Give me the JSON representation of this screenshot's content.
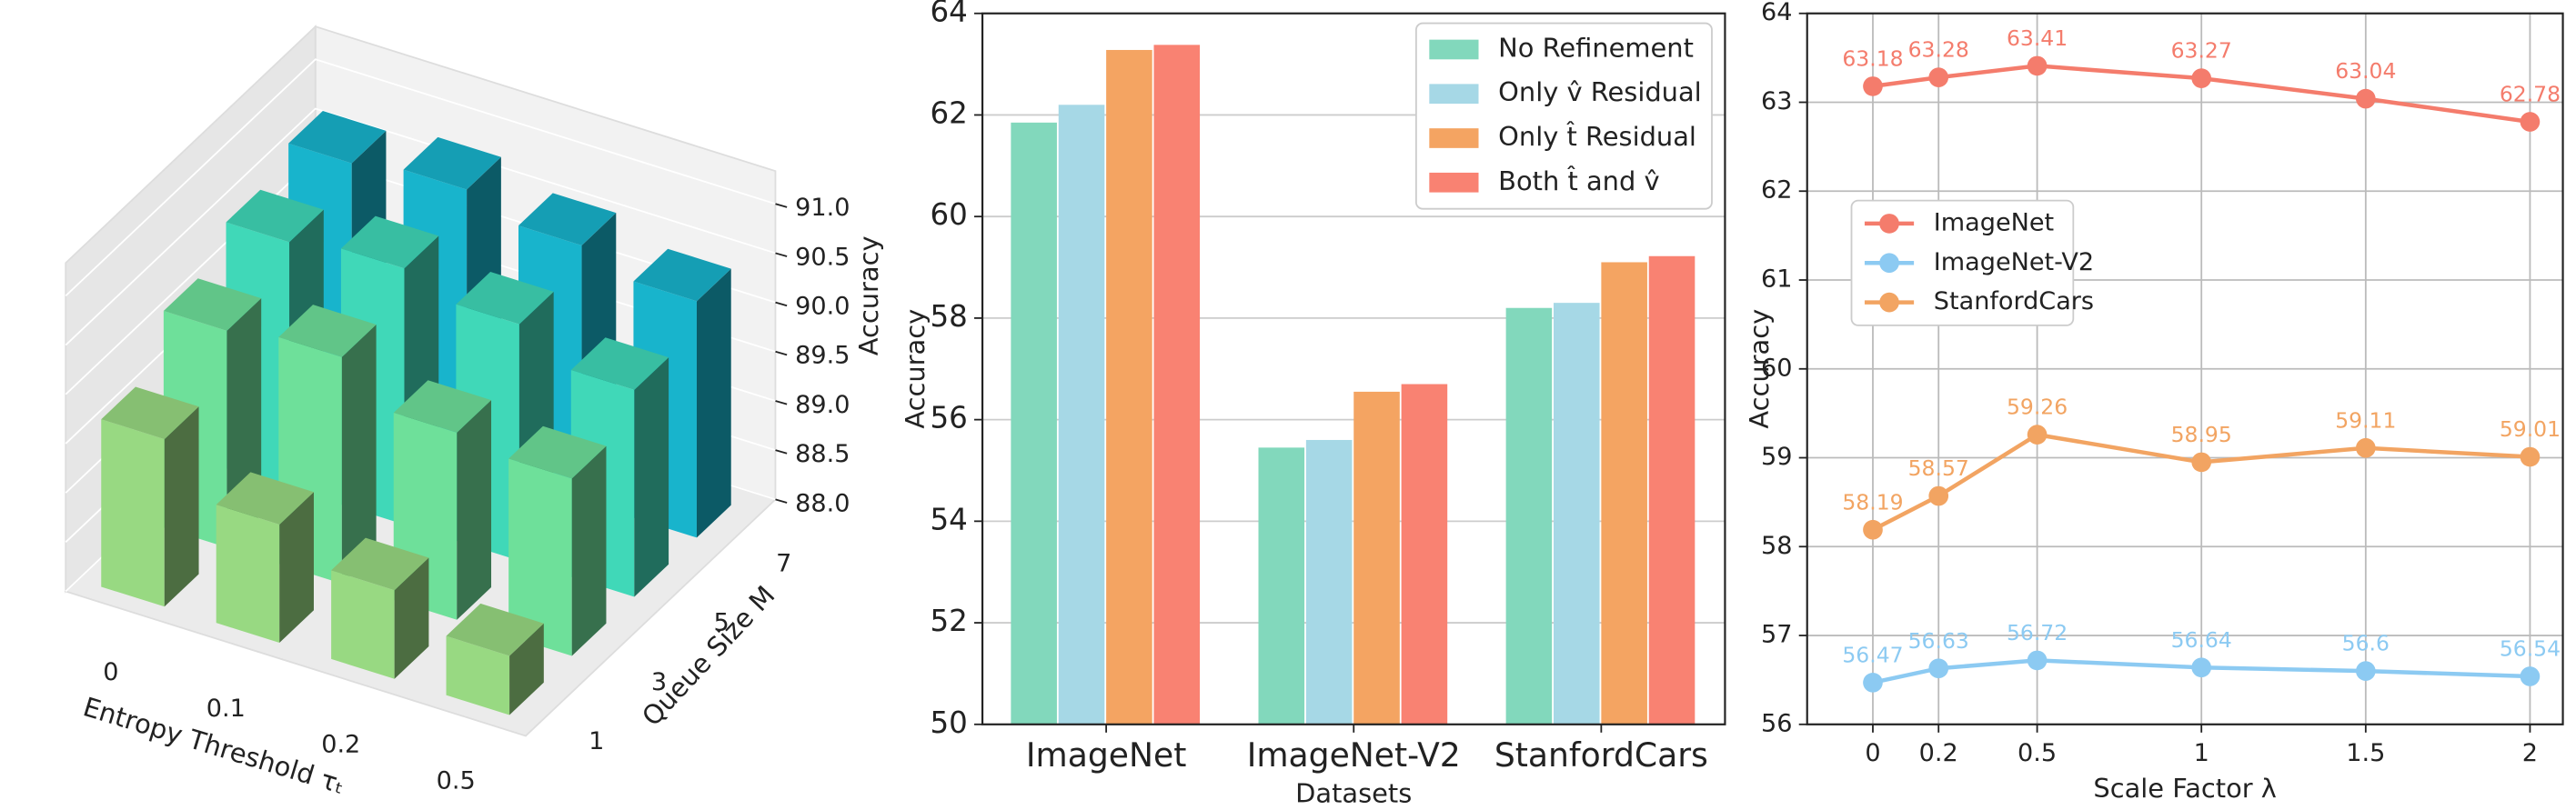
{
  "chart_data": [
    {
      "type": "bar3d",
      "x_label": "Entropy Threshold τₜ",
      "y_label": "Queue Size M",
      "z_label": "Accuracy",
      "x_categories": [
        "0",
        "0.1",
        "0.2",
        "0.5"
      ],
      "y_categories": [
        "1",
        "3",
        "5",
        "7"
      ],
      "values": [
        [
          89.7,
          89.2,
          88.9,
          88.6
        ],
        [
          90.2,
          90.3,
          89.9,
          89.8
        ],
        [
          90.5,
          90.6,
          90.4,
          90.1
        ],
        [
          90.7,
          90.8,
          90.6,
          90.4
        ]
      ],
      "colors": [
        "#98d982",
        "#6ee09a",
        "#40d8b8",
        "#18b4cc"
      ],
      "zlim": [
        88,
        91
      ],
      "zticks": [
        {
          "value": 88,
          "label": "88.0"
        },
        88.5,
        {
          "value": 89,
          "label": "89.0"
        },
        89.5,
        {
          "value": 90,
          "label": "90.0"
        },
        90.5,
        {
          "value": 91,
          "label": "91.0"
        }
      ]
    },
    {
      "type": "bar",
      "x_label": "Datasets",
      "y_label": "Accuracy",
      "categories": [
        "ImageNet",
        "ImageNet-V2",
        "StanfordCars"
      ],
      "series": [
        {
          "name": "No Refinement",
          "color": "#82d8bc",
          "values": [
            61.85,
            55.45,
            58.2
          ]
        },
        {
          "name": "Only v̂ Residual",
          "color": "#a6d8e6",
          "values": [
            62.2,
            55.6,
            58.3
          ]
        },
        {
          "name": "Only t̂ Residual",
          "color": "#f4a462",
          "values": [
            63.28,
            56.55,
            59.1
          ]
        },
        {
          "name": "Both t̂ and v̂",
          "color": "#f98272",
          "values": [
            63.38,
            56.7,
            59.22
          ]
        }
      ],
      "ylim": [
        50,
        64
      ],
      "yticks": [
        50,
        52,
        54,
        56,
        58,
        60,
        62,
        64
      ],
      "grid": true,
      "legend": "upper right"
    },
    {
      "type": "line",
      "x_label": "Scale Factor λ",
      "y_label": "Accuracy",
      "x": [
        0,
        0.2,
        0.5,
        1,
        1.5,
        2
      ],
      "series": [
        {
          "name": "ImageNet",
          "color": "#f47c6c",
          "values": [
            63.18,
            63.28,
            63.41,
            63.27,
            63.04,
            62.78
          ]
        },
        {
          "name": "ImageNet-V2",
          "color": "#8ccaf2",
          "values": [
            56.47,
            56.63,
            56.72,
            56.64,
            56.6,
            56.54
          ]
        },
        {
          "name": "StanfordCars",
          "color": "#f2a462",
          "values": [
            58.19,
            58.57,
            59.26,
            58.95,
            59.11,
            59.01
          ]
        }
      ],
      "xlim": [
        -0.2,
        2.1
      ],
      "ylim": [
        56,
        64
      ],
      "xticks": [
        0,
        0.2,
        0.5,
        1,
        1.5,
        2
      ],
      "yticks": [
        56,
        57,
        58,
        59,
        60,
        61,
        62,
        63,
        64
      ],
      "grid": true,
      "legend": "center left",
      "data_labels": true
    }
  ]
}
